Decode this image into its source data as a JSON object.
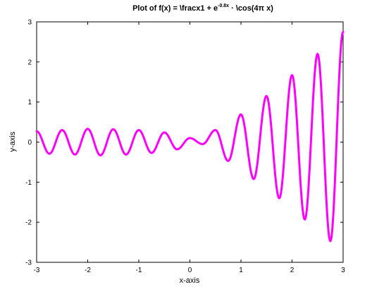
{
  "chart_data": {
    "type": "line",
    "title": {
      "main": "Plot of f(x) = \\fracx1 + e",
      "superscript": "-0.8x",
      "tail": " · \\cos(4π x)"
    },
    "xlabel": "x-axis",
    "ylabel": "y-axis",
    "xlim": [
      -3,
      3
    ],
    "ylim": [
      -3,
      3
    ],
    "xticks": [
      -3,
      -2,
      -1,
      0,
      1,
      2,
      3
    ],
    "yticks": [
      -3,
      -2,
      -1,
      0,
      1,
      2,
      3
    ],
    "xtick_labels": [
      "-3",
      "-2",
      "-1",
      "0",
      "1",
      "2",
      "3"
    ],
    "ytick_labels": [
      "-3",
      "-2",
      "-1",
      "0",
      "1",
      "2",
      "3"
    ],
    "grid": false,
    "line_color": "#ff00ff",
    "series": [
      {
        "x": [
          -3.0,
          -2.75,
          -2.5,
          -2.25,
          -2.0,
          -1.75,
          -1.5,
          -1.25,
          -1.0,
          -0.75,
          -0.5,
          -0.25,
          0.0,
          0.25,
          0.5,
          0.75,
          1.0,
          1.25,
          1.5,
          1.75,
          2.0,
          2.25,
          2.5,
          2.75,
          3.0
        ],
        "y": [
          0.27,
          -0.29,
          0.3,
          -0.31,
          0.33,
          -0.33,
          0.32,
          -0.31,
          0.3,
          -0.27,
          0.24,
          -0.18,
          0.1,
          -0.05,
          0.3,
          -0.47,
          0.69,
          -0.92,
          1.15,
          -1.4,
          1.67,
          -1.93,
          2.2,
          -2.47,
          2.75
        ]
      }
    ]
  }
}
